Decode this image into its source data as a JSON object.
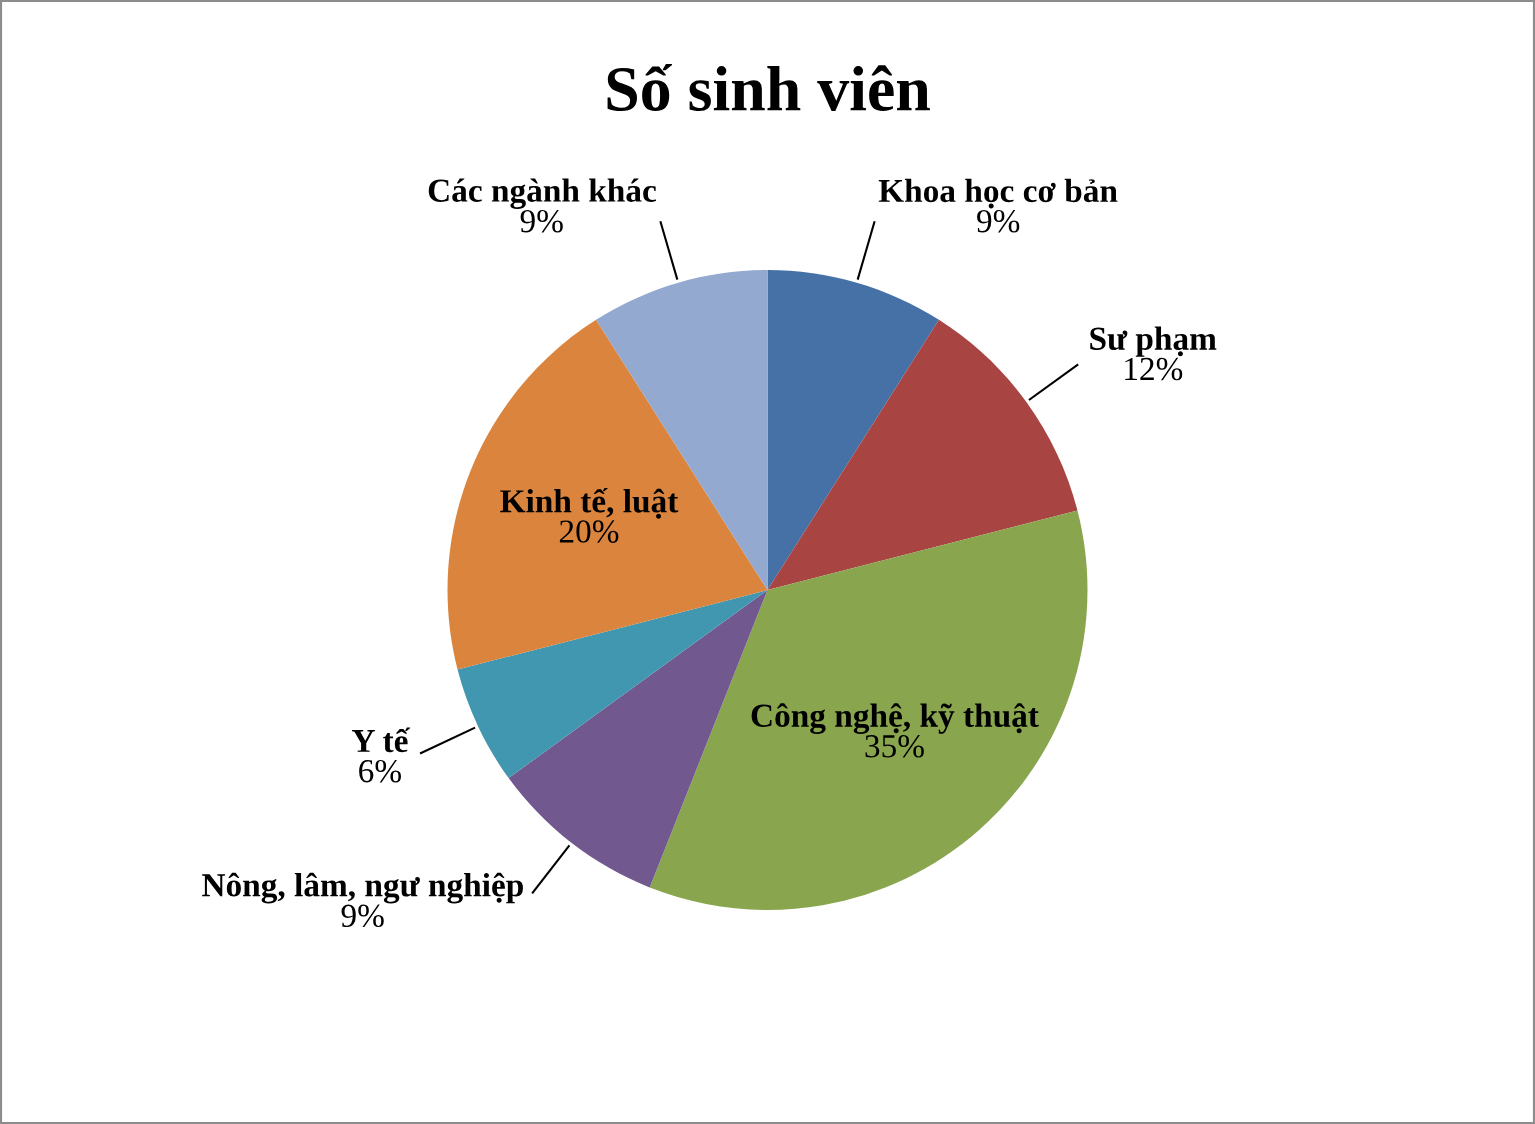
{
  "chart_data": {
    "type": "pie",
    "title": "Số sinh viên",
    "categories": [
      "Khoa học cơ bản",
      "Sư phạm",
      "Công nghệ, kỹ thuật",
      "Nông, lâm, ngư nghiệp",
      "Y tế",
      "Kinh tế, luật",
      "Các ngành khác"
    ],
    "values": [
      9,
      12,
      35,
      9,
      6,
      20,
      9
    ],
    "value_labels": [
      "9%",
      "12%",
      "35%",
      "9%",
      "6%",
      "20%",
      "9%"
    ],
    "colors": [
      "#4571a7",
      "#a84442",
      "#89a54e",
      "#71588f",
      "#4297b0",
      "#db843d",
      "#93a9cf"
    ]
  }
}
